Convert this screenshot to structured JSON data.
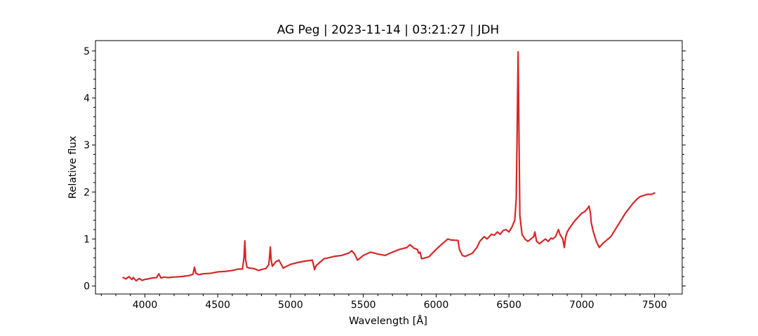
{
  "chart_data": {
    "type": "line",
    "title": "AG Peg | 2023-11-14 | 03:21:27 | JDH",
    "xlabel": "Wavelength [Å]",
    "ylabel": "Relative flux",
    "xlim": [
      3660,
      7690
    ],
    "ylim": [
      -0.17,
      5.22
    ],
    "xticks": [
      4000,
      4500,
      5000,
      5500,
      6000,
      6500,
      7000,
      7500
    ],
    "yticks": [
      0,
      1,
      2,
      3,
      4,
      5
    ],
    "grid": false,
    "legend": "none",
    "series": [
      {
        "color": "#d62728",
        "x": [
          3850,
          3870,
          3890,
          3910,
          3920,
          3940,
          3960,
          3980,
          4000,
          4020,
          4050,
          4080,
          4095,
          4102,
          4110,
          4130,
          4160,
          4200,
          4250,
          4300,
          4330,
          4340,
          4350,
          4370,
          4400,
          4450,
          4500,
          4550,
          4600,
          4640,
          4670,
          4680,
          4686,
          4692,
          4700,
          4720,
          4750,
          4780,
          4800,
          4830,
          4850,
          4855,
          4861,
          4867,
          4875,
          4890,
          4900,
          4920,
          4950,
          4960,
          5000,
          5050,
          5100,
          5150,
          5165,
          5175,
          5200,
          5230,
          5260,
          5300,
          5350,
          5400,
          5420,
          5440,
          5460,
          5480,
          5500,
          5550,
          5600,
          5650,
          5700,
          5750,
          5800,
          5820,
          5850,
          5870,
          5880,
          5890,
          5900,
          5950,
          6000,
          6050,
          6080,
          6100,
          6150,
          6160,
          6180,
          6200,
          6250,
          6280,
          6300,
          6330,
          6350,
          6380,
          6400,
          6420,
          6440,
          6460,
          6480,
          6500,
          6520,
          6540,
          6550,
          6556,
          6563,
          6568,
          6575,
          6590,
          6610,
          6630,
          6650,
          6670,
          6678,
          6690,
          6710,
          6730,
          6750,
          6770,
          6790,
          6800,
          6820,
          6840,
          6850,
          6870,
          6880,
          6890,
          6900,
          6920,
          6950,
          6980,
          7000,
          7020,
          7040,
          7050,
          7060,
          7065,
          7080,
          7100,
          7120,
          7150,
          7200,
          7250,
          7300,
          7350,
          7380,
          7400,
          7450,
          7480,
          7500
        ],
        "y": [
          0.18,
          0.15,
          0.2,
          0.14,
          0.18,
          0.11,
          0.16,
          0.12,
          0.14,
          0.15,
          0.17,
          0.18,
          0.26,
          0.22,
          0.17,
          0.19,
          0.18,
          0.19,
          0.2,
          0.22,
          0.25,
          0.4,
          0.27,
          0.24,
          0.26,
          0.27,
          0.3,
          0.31,
          0.33,
          0.36,
          0.36,
          0.6,
          0.96,
          0.55,
          0.4,
          0.38,
          0.37,
          0.33,
          0.35,
          0.37,
          0.45,
          0.6,
          0.83,
          0.55,
          0.42,
          0.48,
          0.52,
          0.55,
          0.38,
          0.4,
          0.46,
          0.5,
          0.53,
          0.55,
          0.35,
          0.43,
          0.5,
          0.58,
          0.6,
          0.63,
          0.65,
          0.7,
          0.75,
          0.68,
          0.55,
          0.6,
          0.65,
          0.72,
          0.68,
          0.65,
          0.72,
          0.78,
          0.82,
          0.88,
          0.8,
          0.78,
          0.7,
          0.72,
          0.58,
          0.62,
          0.78,
          0.92,
          1.0,
          0.98,
          0.97,
          0.78,
          0.65,
          0.63,
          0.7,
          0.82,
          0.95,
          1.05,
          1.0,
          1.1,
          1.08,
          1.15,
          1.1,
          1.18,
          1.2,
          1.15,
          1.25,
          1.4,
          1.85,
          3.2,
          4.98,
          3.5,
          1.5,
          1.1,
          1.0,
          0.95,
          1.0,
          1.05,
          1.15,
          0.95,
          0.9,
          0.95,
          1.0,
          0.95,
          1.02,
          1.0,
          1.05,
          1.2,
          1.1,
          1.0,
          0.82,
          1.05,
          1.15,
          1.25,
          1.38,
          1.48,
          1.55,
          1.58,
          1.65,
          1.7,
          1.55,
          1.35,
          1.15,
          0.95,
          0.82,
          0.92,
          1.05,
          1.3,
          1.55,
          1.75,
          1.85,
          1.9,
          1.95,
          1.95,
          1.98
        ]
      }
    ]
  }
}
